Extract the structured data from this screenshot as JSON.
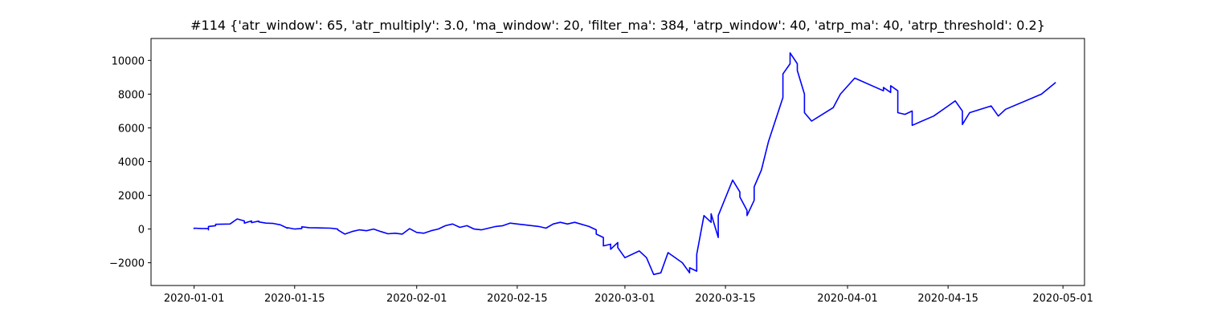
{
  "chart_data": {
    "type": "line",
    "title": "#114 {'atr_window': 65, 'atr_multiply': 3.0, 'ma_window': 20, 'filter_ma': 384, 'atrp_window': 40, 'atrp_ma': 40, 'atrp_threshold': 0.2}",
    "xlabel": "",
    "ylabel": "",
    "grid": false,
    "legend": "none",
    "x_axis": {
      "type": "date",
      "range": [
        "2019-12-26",
        "2020-05-04"
      ],
      "ticks": [
        "2020-01-01",
        "2020-01-15",
        "2020-02-01",
        "2020-02-15",
        "2020-03-01",
        "2020-03-15",
        "2020-04-01",
        "2020-04-15",
        "2020-05-01"
      ]
    },
    "y_axis": {
      "range": [
        -3350,
        11300
      ],
      "ticks": [
        -2000,
        0,
        2000,
        4000,
        6000,
        8000,
        10000
      ],
      "tick_labels": [
        "−2000",
        "0",
        "2000",
        "4000",
        "6000",
        "8000",
        "10000"
      ]
    },
    "series": [
      {
        "color": "#0000ff",
        "points": [
          [
            "2020-01-01",
            0
          ],
          [
            "2020-01-01",
            50
          ],
          [
            "2020-01-02",
            30
          ],
          [
            "2020-01-03",
            20
          ],
          [
            "2020-01-03",
            -50
          ],
          [
            "2020-01-03",
            150
          ],
          [
            "2020-01-04",
            200
          ],
          [
            "2020-01-04",
            280
          ],
          [
            "2020-01-06",
            300
          ],
          [
            "2020-01-07",
            600
          ],
          [
            "2020-01-08",
            480
          ],
          [
            "2020-01-08",
            350
          ],
          [
            "2020-01-09",
            480
          ],
          [
            "2020-01-09",
            380
          ],
          [
            "2020-01-10",
            470
          ],
          [
            "2020-01-10",
            420
          ],
          [
            "2020-01-11",
            350
          ],
          [
            "2020-01-12",
            330
          ],
          [
            "2020-01-13",
            250
          ],
          [
            "2020-01-14",
            50
          ],
          [
            "2020-01-14",
            80
          ],
          [
            "2020-01-15",
            0
          ],
          [
            "2020-01-16",
            30
          ],
          [
            "2020-01-16",
            130
          ],
          [
            "2020-01-17",
            80
          ],
          [
            "2020-01-18",
            70
          ],
          [
            "2020-01-19",
            60
          ],
          [
            "2020-01-20",
            50
          ],
          [
            "2020-01-21",
            0
          ],
          [
            "2020-01-21",
            -50
          ],
          [
            "2020-01-22",
            -300
          ],
          [
            "2020-01-23",
            -150
          ],
          [
            "2020-01-24",
            -50
          ],
          [
            "2020-01-25",
            -100
          ],
          [
            "2020-01-26",
            0
          ],
          [
            "2020-01-27",
            -150
          ],
          [
            "2020-01-28",
            -280
          ],
          [
            "2020-01-29",
            -250
          ],
          [
            "2020-01-30",
            -300
          ],
          [
            "2020-01-31",
            20
          ],
          [
            "2020-02-01",
            -200
          ],
          [
            "2020-02-02",
            -250
          ],
          [
            "2020-02-03",
            -100
          ],
          [
            "2020-02-04",
            0
          ],
          [
            "2020-02-05",
            200
          ],
          [
            "2020-02-06",
            300
          ],
          [
            "2020-02-07",
            100
          ],
          [
            "2020-02-08",
            200
          ],
          [
            "2020-02-09",
            0
          ],
          [
            "2020-02-10",
            -50
          ],
          [
            "2020-02-12",
            150
          ],
          [
            "2020-02-13",
            200
          ],
          [
            "2020-02-14",
            350
          ],
          [
            "2020-02-15",
            300
          ],
          [
            "2020-02-16",
            250
          ],
          [
            "2020-02-18",
            150
          ],
          [
            "2020-02-19",
            50
          ],
          [
            "2020-02-20",
            300
          ],
          [
            "2020-02-21",
            400
          ],
          [
            "2020-02-22",
            300
          ],
          [
            "2020-02-23",
            400
          ],
          [
            "2020-02-25",
            150
          ],
          [
            "2020-02-26",
            -50
          ],
          [
            "2020-02-26",
            -300
          ],
          [
            "2020-02-27",
            -500
          ],
          [
            "2020-02-27",
            -1000
          ],
          [
            "2020-02-28",
            -900
          ],
          [
            "2020-02-28",
            -1200
          ],
          [
            "2020-02-29",
            -800
          ],
          [
            "2020-02-29",
            -1100
          ],
          [
            "2020-03-01",
            -1700
          ],
          [
            "2020-03-03",
            -1300
          ],
          [
            "2020-03-04",
            -1700
          ],
          [
            "2020-03-05",
            -2700
          ],
          [
            "2020-03-06",
            -2600
          ],
          [
            "2020-03-07",
            -1400
          ],
          [
            "2020-03-09",
            -2000
          ],
          [
            "2020-03-10",
            -2600
          ],
          [
            "2020-03-10",
            -2300
          ],
          [
            "2020-03-11",
            -2500
          ],
          [
            "2020-03-11",
            -1500
          ],
          [
            "2020-03-12",
            800
          ],
          [
            "2020-03-13",
            400
          ],
          [
            "2020-03-13",
            900
          ],
          [
            "2020-03-14",
            -500
          ],
          [
            "2020-03-14",
            800
          ],
          [
            "2020-03-16",
            2900
          ],
          [
            "2020-03-17",
            2200
          ],
          [
            "2020-03-17",
            1900
          ],
          [
            "2020-03-18",
            1100
          ],
          [
            "2020-03-18",
            800
          ],
          [
            "2020-03-19",
            1700
          ],
          [
            "2020-03-19",
            2500
          ],
          [
            "2020-03-20",
            3500
          ],
          [
            "2020-03-21",
            5200
          ],
          [
            "2020-03-23",
            7800
          ],
          [
            "2020-03-23",
            9200
          ],
          [
            "2020-03-24",
            9800
          ],
          [
            "2020-03-24",
            10450
          ],
          [
            "2020-03-25",
            9800
          ],
          [
            "2020-03-25",
            9400
          ],
          [
            "2020-03-26",
            8000
          ],
          [
            "2020-03-26",
            6900
          ],
          [
            "2020-03-27",
            6400
          ],
          [
            "2020-03-30",
            7200
          ],
          [
            "2020-03-31",
            8000
          ],
          [
            "2020-04-02",
            8950
          ],
          [
            "2020-04-06",
            8200
          ],
          [
            "2020-04-06",
            8400
          ],
          [
            "2020-04-07",
            8100
          ],
          [
            "2020-04-07",
            8500
          ],
          [
            "2020-04-08",
            8200
          ],
          [
            "2020-04-08",
            6900
          ],
          [
            "2020-04-09",
            6800
          ],
          [
            "2020-04-10",
            7000
          ],
          [
            "2020-04-10",
            6150
          ],
          [
            "2020-04-13",
            6700
          ],
          [
            "2020-04-15",
            7300
          ],
          [
            "2020-04-16",
            7600
          ],
          [
            "2020-04-17",
            7000
          ],
          [
            "2020-04-17",
            6200
          ],
          [
            "2020-04-18",
            6900
          ],
          [
            "2020-04-21",
            7300
          ],
          [
            "2020-04-22",
            6700
          ],
          [
            "2020-04-23",
            7100
          ],
          [
            "2020-04-28",
            8000
          ],
          [
            "2020-04-30",
            8700
          ]
        ]
      }
    ]
  }
}
